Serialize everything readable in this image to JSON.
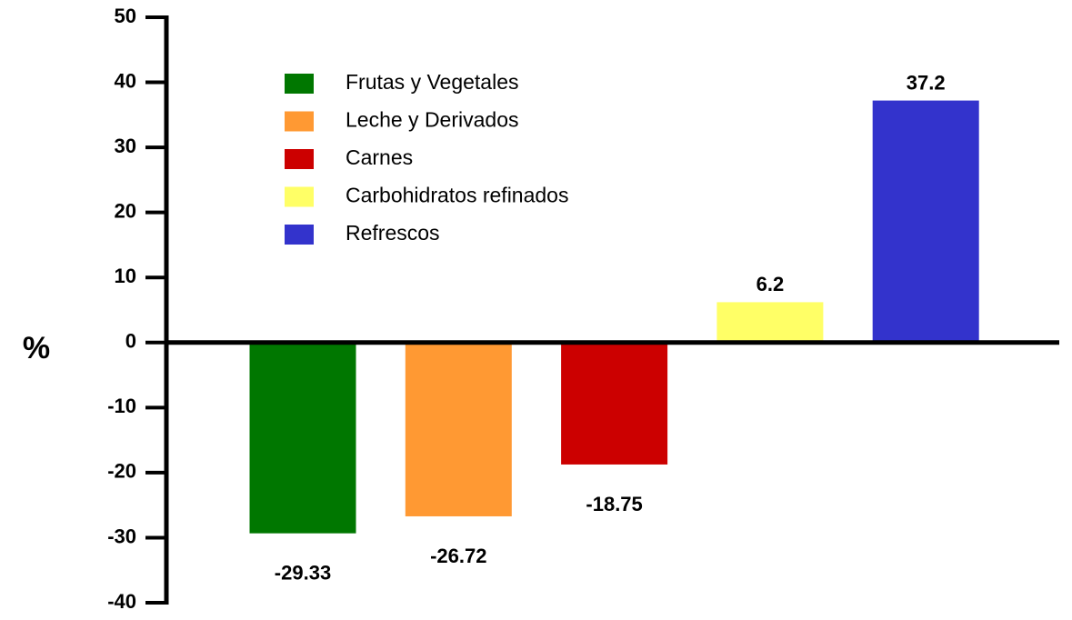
{
  "chart_data": {
    "type": "bar",
    "categories": [
      "Frutas y Vegetales",
      "Leche y Derivados",
      "Carnes",
      "Carbohidratos refinados",
      "Refrescos"
    ],
    "values": [
      -29.33,
      -26.72,
      -18.75,
      6.2,
      37.2
    ],
    "colors": [
      "#007700",
      "#ff9933",
      "#cc0000",
      "#ffff66",
      "#3333cc"
    ],
    "y_label": "%",
    "ylim": [
      -40,
      50
    ],
    "yticks": [
      -40,
      -30,
      -20,
      -10,
      0,
      10,
      20,
      30,
      40,
      50
    ],
    "grid": false,
    "legend": "top-left"
  }
}
